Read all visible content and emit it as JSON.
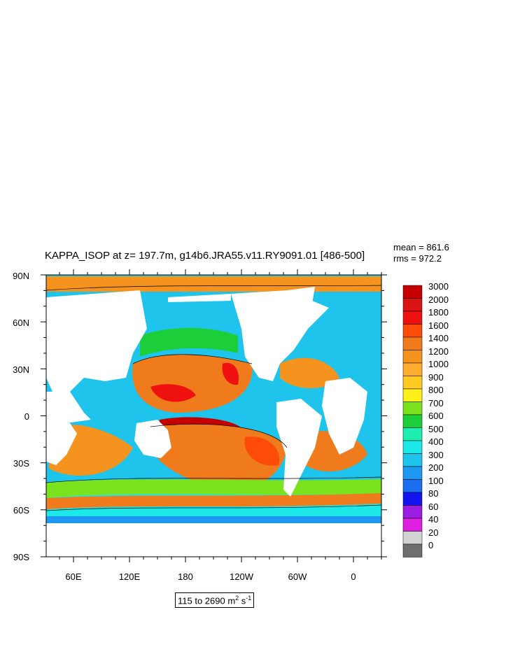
{
  "title": "KAPPA_ISOP at z= 197.7m, g14b6.JRA55.v11.RY9091.01 [486-500]",
  "stats": {
    "mean": "mean = 861.6",
    "rms": "rms = 972.2"
  },
  "axes": {
    "lat_labels": [
      "90N",
      "60N",
      "30N",
      "0",
      "30S",
      "60S",
      "90S"
    ],
    "lon_labels": [
      "60E",
      "120E",
      "180",
      "120W",
      "60W",
      "0"
    ]
  },
  "units": {
    "prefix": "115 to 2690 m",
    "exp1": "2",
    "mid": " s",
    "exp2": "-1"
  },
  "colorbar": {
    "labels": [
      "3000",
      "2000",
      "1800",
      "1600",
      "1400",
      "1200",
      "1000",
      "900",
      "800",
      "700",
      "600",
      "500",
      "400",
      "300",
      "200",
      "100",
      "80",
      "60",
      "40",
      "20",
      "0"
    ],
    "colors": [
      "#c40000",
      "#d91414",
      "#ef1010",
      "#ff4b0a",
      "#f07b1c",
      "#f4941e",
      "#ffad2e",
      "#ffcb23",
      "#ffef1a",
      "#7be21e",
      "#1ccf3a",
      "#1eeeb0",
      "#1de8e8",
      "#1ec4ec",
      "#1e98f0",
      "#1a6eef",
      "#1414ef",
      "#9b1ee0",
      "#e01ee0",
      "#d2d2d2",
      "#6e6e6e"
    ]
  },
  "map": {
    "ocean_base": "#1ec4ec",
    "land_color": "#ffffff"
  }
}
